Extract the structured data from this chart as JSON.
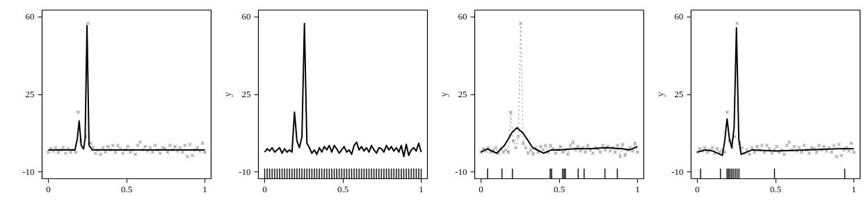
{
  "chart_data": [
    {
      "type": "line",
      "xlim": [
        -0.04,
        1.04
      ],
      "ylim": [
        -13,
        63
      ],
      "xticks": [
        0,
        0.5,
        1
      ],
      "yticks": [
        -10,
        25,
        60
      ],
      "grid": false,
      "x": [
        0,
        0.0159,
        0.0317,
        0.0476,
        0.0635,
        0.0794,
        0.0952,
        0.1111,
        0.127,
        0.1429,
        0.1587,
        0.1746,
        0.1905,
        0.2063,
        0.2222,
        0.2381,
        0.254,
        0.2698,
        0.2857,
        0.3016,
        0.3175,
        0.3333,
        0.3492,
        0.3651,
        0.381,
        0.3968,
        0.4127,
        0.4286,
        0.4444,
        0.4603,
        0.4762,
        0.4921,
        0.5079,
        0.5238,
        0.5397,
        0.5556,
        0.5714,
        0.5873,
        0.6032,
        0.619,
        0.6349,
        0.6508,
        0.6667,
        0.6825,
        0.6984,
        0.7143,
        0.7302,
        0.746,
        0.7619,
        0.7778,
        0.7937,
        0.8095,
        0.8254,
        0.8413,
        0.8571,
        0.873,
        0.8889,
        0.9048,
        0.9206,
        0.9365,
        0.9524,
        0.9683,
        0.9841,
        1
      ],
      "series": [
        {
          "type": "scatter",
          "color": "#a0a0a0",
          "marker": "cross",
          "values": [
            -1,
            0.5,
            -0.5,
            1,
            -1,
            0,
            1,
            -1.5,
            0.5,
            -1,
            0,
            -1,
            17,
            4,
            1,
            6,
            57,
            3,
            1,
            -1.5,
            0,
            -2,
            1,
            -1,
            1.5,
            0,
            2,
            -1,
            2,
            0.5,
            -1.5,
            0,
            1.5,
            -1,
            0,
            -2,
            2,
            3.5,
            0,
            1.5,
            -0.5,
            1,
            -1,
            2,
            0,
            -1.5,
            1,
            0.5,
            -1,
            2,
            0,
            1.5,
            -0.5,
            1,
            -1,
            2,
            -3,
            2.5,
            -2.5,
            0,
            1,
            -0.5,
            3,
            -1
          ]
        },
        {
          "color": "#000000",
          "line_style": "solid",
          "x": [
            0,
            0.17,
            0.185,
            0.197,
            0.21,
            0.225,
            0.235,
            0.247,
            0.26,
            0.28,
            1
          ],
          "values": [
            0,
            0,
            5,
            13,
            2,
            0.5,
            5,
            56,
            2,
            0,
            0
          ]
        }
      ]
    },
    {
      "type": "line",
      "xlim": [
        -0.04,
        1.04
      ],
      "ylim": [
        -13,
        63
      ],
      "xticks": [
        0,
        0.5,
        1
      ],
      "yticks": [
        -10,
        25,
        60
      ],
      "ylabel": "y",
      "grid": false,
      "x": [
        0,
        0.0159,
        0.0317,
        0.0476,
        0.0635,
        0.0794,
        0.0952,
        0.1111,
        0.127,
        0.1429,
        0.1587,
        0.1746,
        0.1905,
        0.2063,
        0.2222,
        0.2381,
        0.254,
        0.2698,
        0.2857,
        0.3016,
        0.3175,
        0.3333,
        0.3492,
        0.3651,
        0.381,
        0.3968,
        0.4127,
        0.4286,
        0.4444,
        0.4603,
        0.4762,
        0.4921,
        0.5079,
        0.5238,
        0.5397,
        0.5556,
        0.5714,
        0.5873,
        0.6032,
        0.619,
        0.6349,
        0.6508,
        0.6667,
        0.6825,
        0.6984,
        0.7143,
        0.7302,
        0.746,
        0.7619,
        0.7778,
        0.7937,
        0.8095,
        0.8254,
        0.8413,
        0.8571,
        0.873,
        0.8889,
        0.9048,
        0.9206,
        0.9365,
        0.9524,
        0.9683,
        0.9841,
        1
      ],
      "series": [
        {
          "color": "#000000",
          "line_style": "solid",
          "values": [
            -1,
            0.5,
            -0.5,
            1,
            -1,
            0,
            1,
            -1.5,
            0.5,
            -1,
            0,
            -1,
            17,
            4,
            1,
            6,
            57,
            3,
            1,
            -1.5,
            0,
            -2,
            1,
            -1,
            1.5,
            0,
            2,
            -1,
            2,
            0.5,
            -1.5,
            0,
            1.5,
            -1,
            0,
            -2,
            2,
            3.5,
            0,
            1.5,
            -0.5,
            1,
            -1,
            2,
            0,
            -1.5,
            1,
            0.5,
            -1,
            2,
            0,
            1.5,
            -0.5,
            1,
            -1,
            2,
            -3,
            2.5,
            -2.5,
            0,
            1,
            -0.5,
            3,
            -1
          ]
        },
        {
          "type": "bar",
          "color": "#000000",
          "base": [
            -13,
            -13,
            -13,
            -13,
            -13,
            -13,
            -13,
            -13,
            -13,
            -13,
            -13,
            -13,
            -13,
            -13,
            -13,
            -13,
            -13,
            -13,
            -13,
            -13,
            -13,
            -13,
            -13,
            -13,
            -13,
            -13,
            -13,
            -13,
            -13,
            -13,
            -13,
            -13,
            -13,
            -13,
            -13,
            -13,
            -13,
            -13,
            -13,
            -13,
            -13,
            -13,
            -13,
            -13,
            -13,
            -13,
            -13,
            -13,
            -13,
            -13,
            -13,
            -13,
            -13,
            -13,
            -13,
            -13,
            -13,
            -13,
            -13,
            -13,
            -13,
            -13,
            -13,
            -13
          ],
          "values": [
            4.5,
            4.5,
            4.5,
            4.5,
            4.5,
            4.5,
            4.5,
            4.5,
            4.5,
            4.5,
            4.5,
            4.5,
            4.5,
            4.5,
            4.5,
            4.5,
            4.5,
            4.5,
            4.5,
            4.5,
            4.5,
            4.5,
            4.5,
            4.5,
            4.5,
            4.5,
            4.5,
            4.5,
            4.5,
            4.5,
            4.5,
            4.5,
            4.5,
            4.5,
            4.5,
            4.5,
            4.5,
            4.5,
            4.5,
            4.5,
            4.5,
            4.5,
            4.5,
            4.5,
            4.5,
            4.5,
            4.5,
            4.5,
            4.5,
            4.5,
            4.5,
            4.5,
            4.5,
            4.5,
            4.5,
            4.5,
            4.5,
            4.5,
            4.5,
            4.5,
            4.5,
            4.5,
            4.5,
            4.5
          ]
        }
      ]
    },
    {
      "type": "line",
      "xlim": [
        -0.04,
        1.04
      ],
      "ylim": [
        -13,
        63
      ],
      "xticks": [
        0,
        0.5,
        1
      ],
      "yticks": [
        -10,
        25,
        60
      ],
      "ylabel": "y",
      "grid": false,
      "x": [
        0,
        0.0159,
        0.0317,
        0.0476,
        0.0635,
        0.0794,
        0.0952,
        0.1111,
        0.127,
        0.1429,
        0.1587,
        0.1746,
        0.1905,
        0.2063,
        0.2222,
        0.2381,
        0.254,
        0.2698,
        0.2857,
        0.3016,
        0.3175,
        0.3333,
        0.3492,
        0.3651,
        0.381,
        0.3968,
        0.4127,
        0.4286,
        0.4444,
        0.4603,
        0.4762,
        0.4921,
        0.5079,
        0.5238,
        0.5397,
        0.5556,
        0.5714,
        0.5873,
        0.6032,
        0.619,
        0.6349,
        0.6508,
        0.6667,
        0.6825,
        0.6984,
        0.7143,
        0.7302,
        0.746,
        0.7619,
        0.7778,
        0.7937,
        0.8095,
        0.8254,
        0.8413,
        0.8571,
        0.873,
        0.8889,
        0.9048,
        0.9206,
        0.9365,
        0.9524,
        0.9683,
        0.9841,
        1
      ],
      "series": [
        {
          "color": "#a0a0a0",
          "line_style": "dotted",
          "values": [
            -1,
            0.5,
            -0.5,
            1,
            -1,
            0,
            1,
            -1.5,
            0.5,
            -1,
            0,
            -1,
            17,
            4,
            1,
            6,
            57,
            3,
            1,
            -1.5,
            0,
            -2,
            1,
            -1,
            1.5,
            0,
            2,
            -1,
            2,
            0.5,
            -1.5,
            0,
            1.5,
            -1,
            0,
            -2,
            2,
            3.5,
            0,
            1.5,
            -0.5,
            1,
            -1,
            2,
            0,
            -1.5,
            1,
            0.5,
            -1,
            2,
            0,
            1.5,
            -0.5,
            1,
            -1,
            2,
            -3,
            2.5,
            -2.5,
            0,
            1,
            -0.5,
            3,
            -1
          ]
        },
        {
          "type": "scatter",
          "color": "#a0a0a0",
          "marker": "cross",
          "values": [
            -1,
            0.5,
            -0.5,
            1,
            -1,
            0,
            1,
            -1.5,
            0.5,
            -1,
            0,
            -1,
            17,
            4,
            1,
            6,
            57,
            3,
            1,
            -1.5,
            0,
            -2,
            1,
            -1,
            1.5,
            0,
            2,
            -1,
            2,
            0.5,
            -1.5,
            0,
            1.5,
            -1,
            0,
            -2,
            2,
            3.5,
            0,
            1.5,
            -0.5,
            1,
            -1,
            2,
            0,
            -1.5,
            1,
            0.5,
            -1,
            2,
            0,
            1.5,
            -0.5,
            1,
            -1,
            2,
            -3,
            2.5,
            -2.5,
            0,
            1,
            -0.5,
            3,
            -1
          ]
        },
        {
          "color": "#000000",
          "line_style": "solid",
          "x": [
            0,
            0.04,
            0.1,
            0.15,
            0.2,
            0.23,
            0.27,
            0.33,
            0.4,
            0.45,
            0.5,
            0.6,
            0.7,
            0.8,
            0.9,
            0.95,
            1
          ],
          "values": [
            -1,
            0.5,
            -1.5,
            2,
            8,
            10,
            7.5,
            1,
            -1.5,
            0,
            0,
            0.5,
            0.5,
            1,
            0.5,
            0,
            1.5
          ]
        },
        {
          "type": "bar",
          "color": "#000000",
          "x": [
            0.042,
            0.134,
            0.201,
            0.442,
            0.451,
            0.521,
            0.531,
            0.539,
            0.621,
            0.659,
            0.792,
            0.871
          ],
          "base": [
            -13,
            -13,
            -13,
            -13,
            -13,
            -13,
            -13,
            -13,
            -13,
            -13,
            -13,
            -13
          ],
          "values": [
            4.5,
            4.5,
            4.5,
            4.5,
            4.5,
            4.5,
            4.5,
            4.5,
            4.5,
            4.5,
            4.5,
            4.5
          ]
        }
      ]
    },
    {
      "type": "line",
      "xlim": [
        -0.04,
        1.04
      ],
      "ylim": [
        -13,
        63
      ],
      "xticks": [
        0,
        0.5,
        1
      ],
      "yticks": [
        -10,
        25,
        60
      ],
      "ylabel": "y",
      "grid": false,
      "x": [
        0,
        0.0159,
        0.0317,
        0.0476,
        0.0635,
        0.0794,
        0.0952,
        0.1111,
        0.127,
        0.1429,
        0.1587,
        0.1746,
        0.1905,
        0.2063,
        0.2222,
        0.2381,
        0.254,
        0.2698,
        0.2857,
        0.3016,
        0.3175,
        0.3333,
        0.3492,
        0.3651,
        0.381,
        0.3968,
        0.4127,
        0.4286,
        0.4444,
        0.4603,
        0.4762,
        0.4921,
        0.5079,
        0.5238,
        0.5397,
        0.5556,
        0.5714,
        0.5873,
        0.6032,
        0.619,
        0.6349,
        0.6508,
        0.6667,
        0.6825,
        0.6984,
        0.7143,
        0.7302,
        0.746,
        0.7619,
        0.7778,
        0.7937,
        0.8095,
        0.8254,
        0.8413,
        0.8571,
        0.873,
        0.8889,
        0.9048,
        0.9206,
        0.9365,
        0.9524,
        0.9683,
        0.9841,
        1
      ],
      "series": [
        {
          "type": "scatter",
          "color": "#a0a0a0",
          "marker": "cross",
          "values": [
            -1,
            0.5,
            -0.5,
            1,
            -1,
            0,
            1,
            -1.5,
            0.5,
            -1,
            0,
            -1,
            17,
            4,
            1,
            6,
            57,
            3,
            1,
            -1.5,
            0,
            -2,
            1,
            -1,
            1.5,
            0,
            2,
            -1,
            2,
            0.5,
            -1.5,
            0,
            1.5,
            -1,
            0,
            -2,
            2,
            3.5,
            0,
            1.5,
            -0.5,
            1,
            -1,
            2,
            0,
            -1.5,
            1,
            0.5,
            -1,
            2,
            0,
            1.5,
            -0.5,
            1,
            -1,
            2,
            -3,
            2.5,
            -2.5,
            0,
            1,
            -0.5,
            3,
            -1
          ]
        },
        {
          "color": "#000000",
          "line_style": "solid",
          "x": [
            0,
            0.05,
            0.1,
            0.16,
            0.175,
            0.19,
            0.205,
            0.22,
            0.235,
            0.25,
            0.265,
            0.28,
            0.35,
            0.5,
            0.7,
            0.9,
            1
          ],
          "values": [
            -1,
            0,
            -0.5,
            -2.5,
            4,
            14,
            5,
            1,
            10,
            55,
            5,
            -2,
            0,
            -0.5,
            0,
            0.5,
            0.5
          ]
        },
        {
          "type": "bar",
          "color": "#000000",
          "x": [
            0.021,
            0.148,
            0.19,
            0.199,
            0.208,
            0.219,
            0.23,
            0.242,
            0.254,
            0.266,
            0.493,
            0.942
          ],
          "base": [
            -13,
            -13,
            -13,
            -13,
            -13,
            -13,
            -13,
            -13,
            -13,
            -13,
            -13,
            -13
          ],
          "values": [
            4.5,
            4.5,
            4.5,
            4.5,
            4.5,
            4.5,
            4.5,
            4.5,
            4.5,
            4.5,
            4.5,
            4.5
          ]
        }
      ]
    }
  ]
}
